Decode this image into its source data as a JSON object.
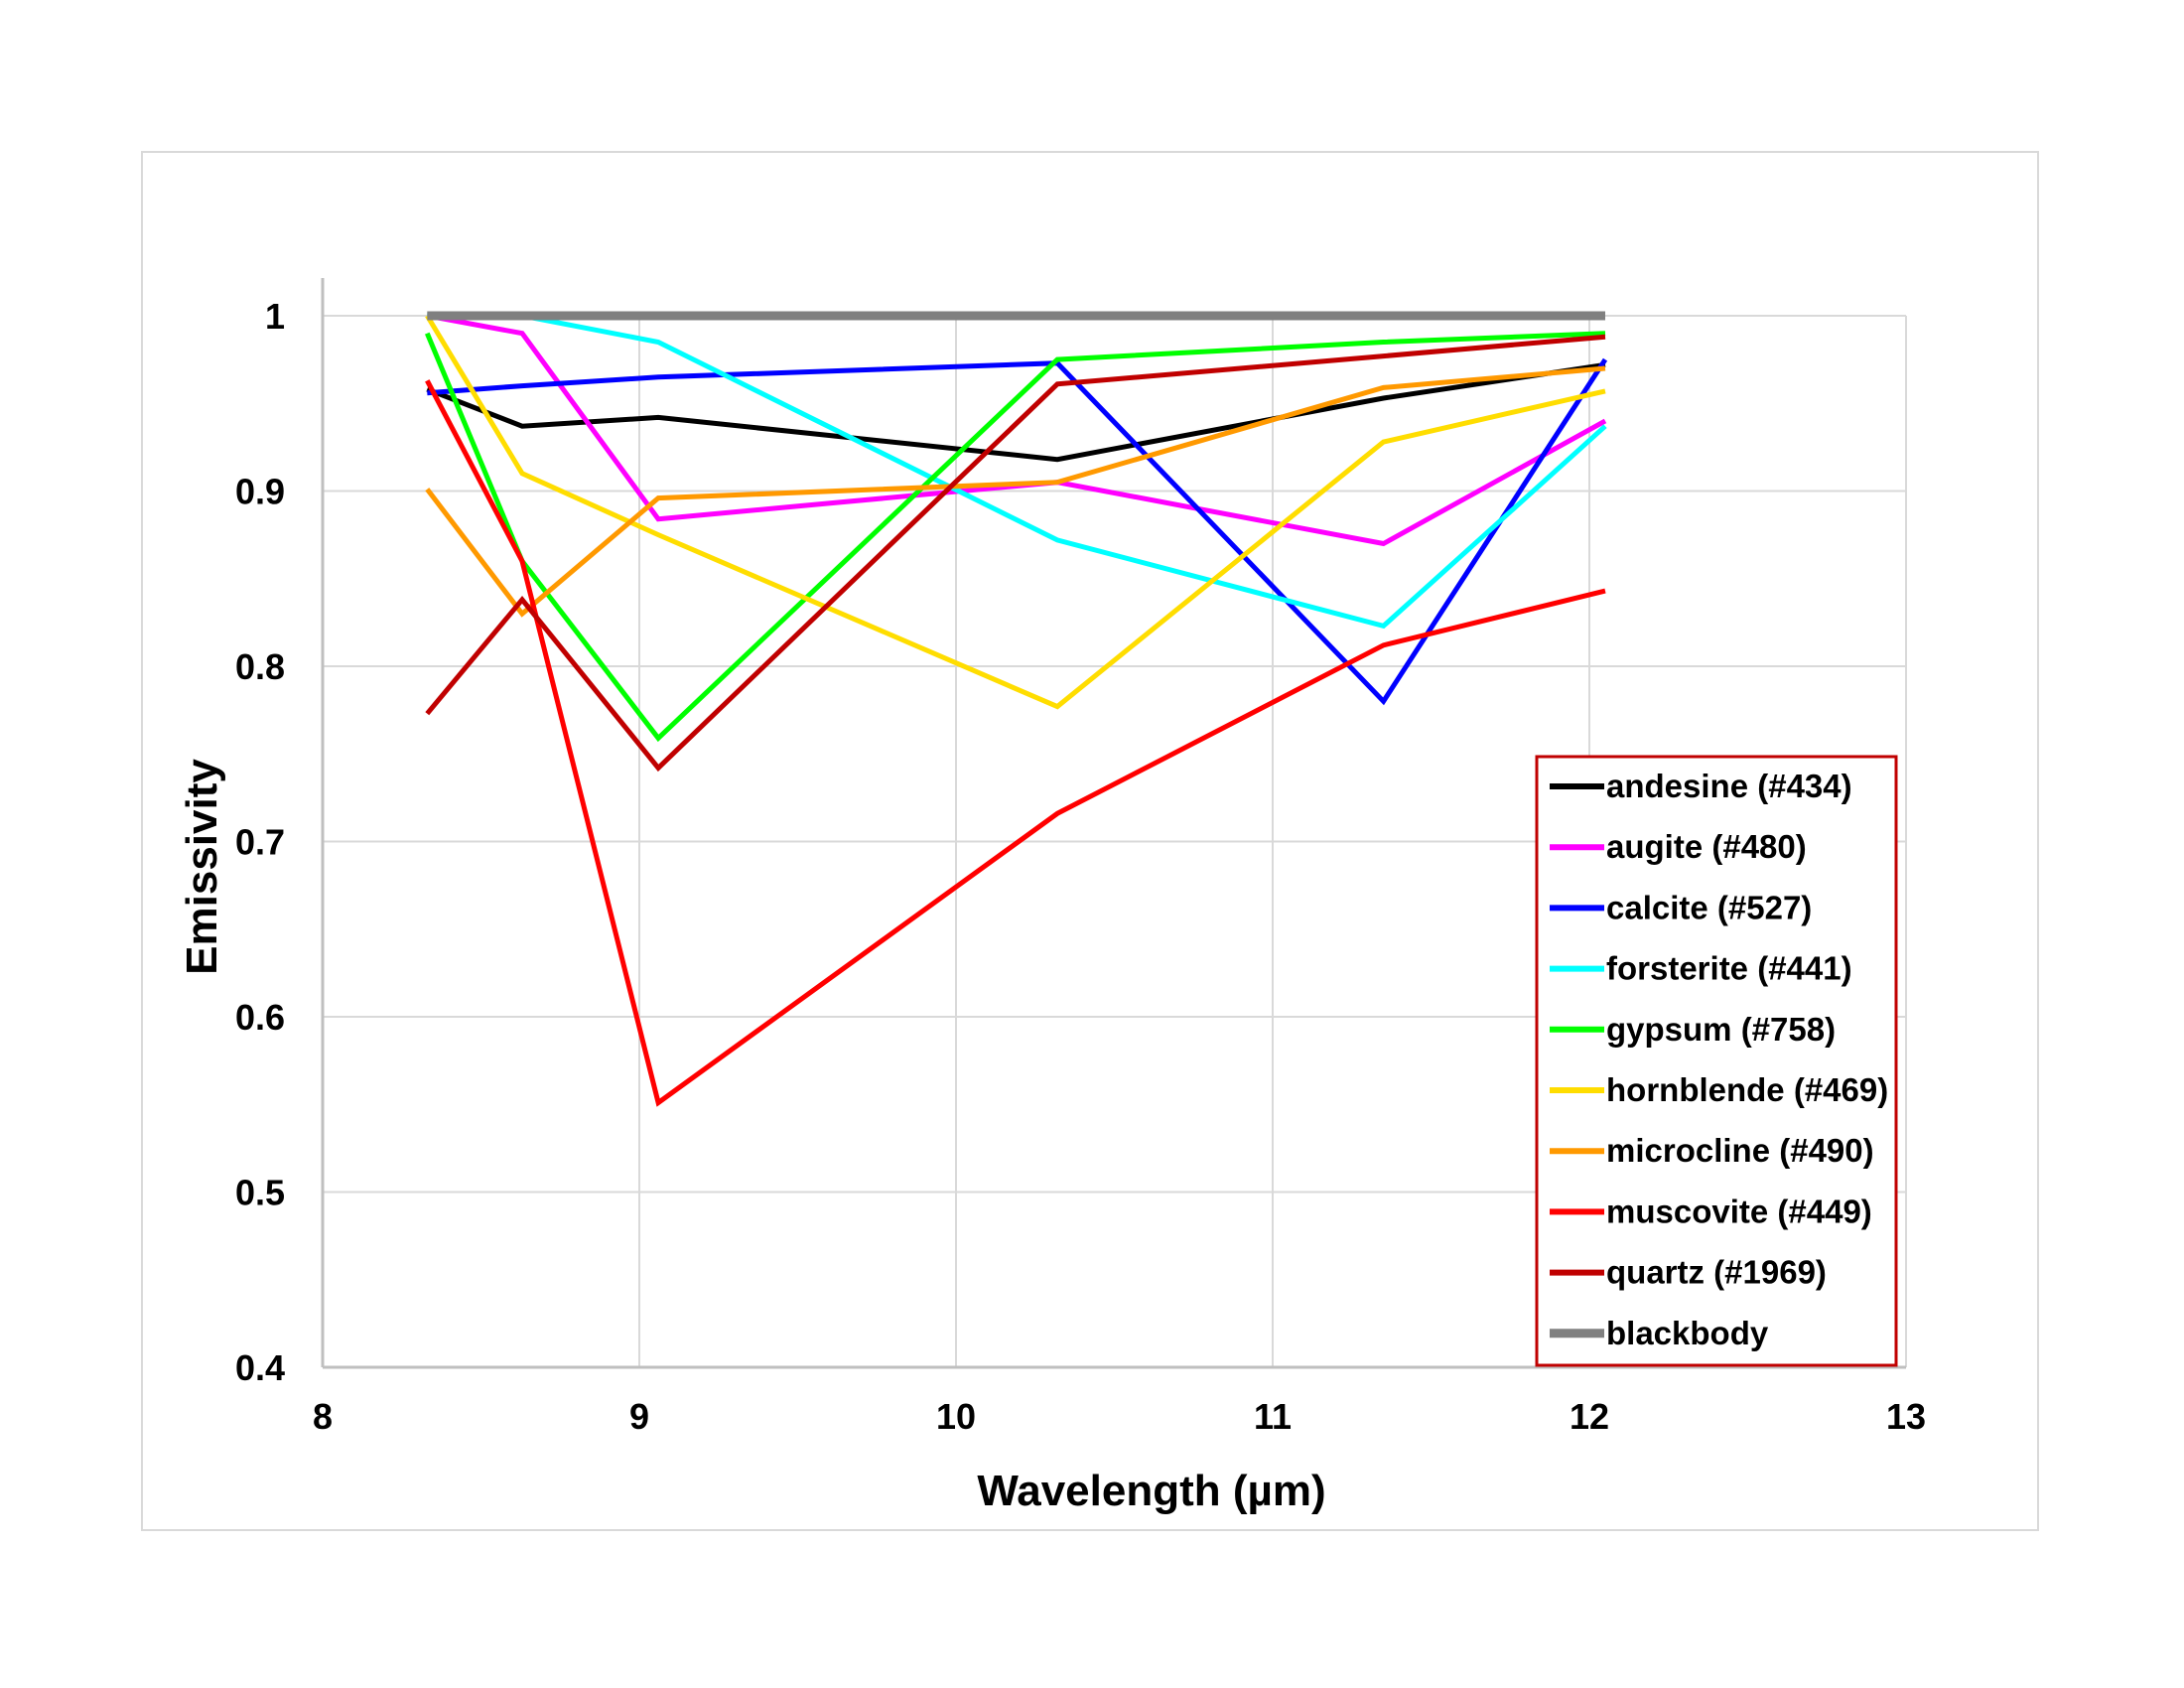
{
  "chart_data": {
    "type": "line",
    "xlabel": "Wavelength (µm)",
    "ylabel": "Emissivity",
    "xlim": [
      8,
      13
    ],
    "ylim": [
      0.4,
      1.0
    ],
    "x_ticks": [
      "8",
      "9",
      "10",
      "11",
      "12",
      "13"
    ],
    "y_ticks": [
      "0.4",
      "0.5",
      "0.6",
      "0.7",
      "0.8",
      "0.9",
      "1"
    ],
    "grid": true,
    "legend_position": "bottom-right",
    "legend_border_color": "#c00000",
    "x": [
      8.33,
      8.63,
      9.06,
      10.32,
      11.35,
      12.05
    ],
    "series": [
      {
        "name": "andesine (#434)",
        "color": "#000000",
        "values": [
          0.958,
          0.937,
          0.942,
          0.918,
          0.953,
          0.972
        ]
      },
      {
        "name": "augite (#480)",
        "color": "#ff00ff",
        "values": [
          1.0,
          0.99,
          0.884,
          0.905,
          0.87,
          0.94
        ]
      },
      {
        "name": "calcite (#527)",
        "color": "#0000ff",
        "values": [
          0.956,
          0.96,
          0.965,
          0.973,
          0.78,
          0.975
        ]
      },
      {
        "name": "forsterite (#441)",
        "color": "#00ffff",
        "values": [
          1.0,
          1.0,
          0.985,
          0.872,
          0.823,
          0.937
        ]
      },
      {
        "name": "gypsum (#758)",
        "color": "#00ff00",
        "values": [
          0.99,
          0.86,
          0.759,
          0.975,
          0.985,
          0.99
        ]
      },
      {
        "name": "hornblende (#469)",
        "color": "#ffdd00",
        "values": [
          1.0,
          0.91,
          0.875,
          0.777,
          0.928,
          0.957
        ]
      },
      {
        "name": "microcline (#490)",
        "color": "#ff9900",
        "values": [
          0.901,
          0.83,
          0.896,
          0.905,
          0.959,
          0.97
        ]
      },
      {
        "name": "muscovite (#449)",
        "color": "#ff0000",
        "values": [
          0.963,
          0.86,
          0.551,
          0.716,
          0.812,
          0.843
        ]
      },
      {
        "name": "quartz (#1969)",
        "color": "#c00000",
        "values": [
          0.773,
          0.838,
          0.742,
          0.961,
          0.977,
          0.988
        ]
      },
      {
        "name": "blackbody",
        "color": "#808080",
        "values": [
          1.0,
          1.0,
          1.0,
          1.0,
          1.0,
          1.0
        ]
      }
    ]
  }
}
